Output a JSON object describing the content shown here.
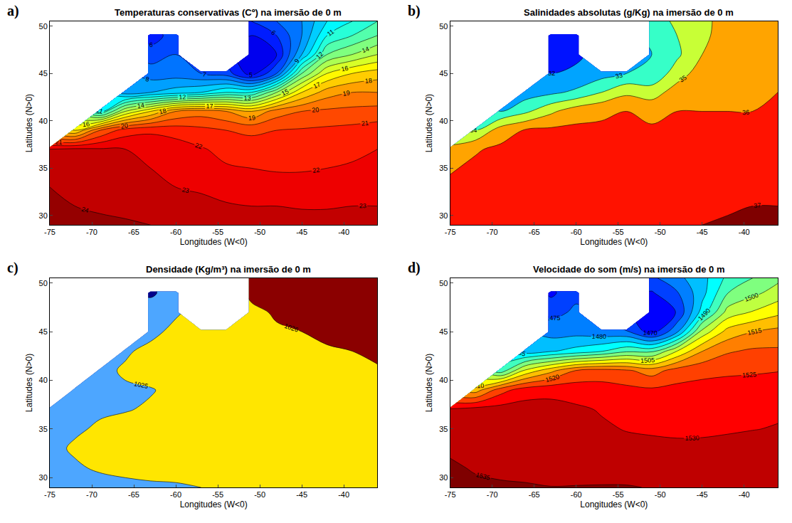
{
  "chart_data": [
    {
      "type": "contour",
      "panel": "a)",
      "title": "Temperaturas conservativas (Cº) na imersão de 0 m",
      "xlabel": "Longitudes (W<0)",
      "ylabel": "Latitudes (N>0)",
      "xlim": [
        -75,
        -36
      ],
      "xticks": [
        -75,
        -70,
        -65,
        -60,
        -55,
        -50,
        -45,
        -40
      ],
      "ylim": [
        29,
        50.5
      ],
      "yticks": [
        30,
        35,
        40,
        45,
        50
      ],
      "zlim": [
        2,
        26
      ],
      "levels": [
        2,
        3,
        4,
        5,
        6,
        7,
        8,
        9,
        10,
        11,
        12,
        13,
        14,
        15,
        16,
        17,
        18,
        19,
        20,
        21,
        22,
        23,
        24,
        25
      ],
      "colors": [
        "#00007f",
        "#0000ff",
        "#007fff",
        "#00ffff",
        "#7fff7f",
        "#ffff00",
        "#ff7f00",
        "#ff0000",
        "#7f0000"
      ],
      "x": [
        -75,
        -72,
        -69,
        -66,
        -63,
        -60,
        -57,
        -54,
        -51,
        -48,
        -45,
        -42,
        -39,
        -36
      ],
      "y": [
        29,
        31,
        33,
        35,
        37,
        39,
        41,
        43,
        45,
        47,
        49,
        50.5
      ],
      "z": [
        [
          24.5,
          24.5,
          24.3,
          24.2,
          24,
          24,
          24,
          24,
          23.8,
          23.6,
          23.5,
          23.5,
          23.5,
          23.5
        ],
        [
          24.5,
          24,
          23.8,
          23.6,
          23.4,
          23.3,
          23.2,
          23.1,
          23,
          23,
          22.9,
          22.9,
          23,
          23
        ],
        [
          24,
          23.6,
          23.3,
          23.2,
          23.1,
          23,
          22.9,
          22.6,
          22.5,
          22.4,
          22.4,
          22.5,
          22.6,
          22.7
        ],
        [
          23.8,
          23.5,
          23.3,
          23.1,
          23,
          22.8,
          22.4,
          22.1,
          22,
          21.9,
          21.9,
          22,
          22.1,
          22.2
        ],
        [
          23,
          23.2,
          23.1,
          23,
          22.8,
          22.5,
          22.1,
          21.7,
          21.5,
          21.4,
          21.5,
          21.6,
          21.8,
          22
        ],
        [
          null,
          17,
          20,
          21.5,
          21.8,
          21.6,
          21.3,
          21,
          20.8,
          21,
          21.1,
          21.2,
          21.3,
          21.5
        ],
        [
          null,
          null,
          11,
          15,
          17,
          19,
          19.5,
          19,
          18,
          19.5,
          20,
          20.2,
          20.3,
          20.4
        ],
        [
          null,
          null,
          null,
          8.5,
          9,
          9.5,
          10,
          11,
          11,
          14,
          17,
          18.5,
          19,
          19
        ],
        [
          null,
          null,
          null,
          null,
          7.5,
          7.5,
          7,
          6.5,
          4.5,
          7,
          13,
          16,
          17,
          17.5
        ],
        [
          null,
          null,
          null,
          null,
          6.5,
          7,
          null,
          null,
          4,
          5,
          9,
          13,
          14,
          15
        ],
        [
          null,
          null,
          null,
          null,
          5.5,
          6.5,
          null,
          null,
          5,
          6,
          8,
          11,
          12,
          13
        ],
        [
          null,
          null,
          null,
          null,
          null,
          null,
          null,
          null,
          6,
          7,
          8,
          10,
          11,
          12
        ]
      ]
    },
    {
      "type": "contour",
      "panel": "b)",
      "title": "Salinidades absolutas (g/Kg) na imersão de 0 m",
      "xlabel": "Longitudes (W<0)",
      "ylabel": "Latitudes (N>0)",
      "xlim": [
        -75,
        -36
      ],
      "xticks": [
        -75,
        -70,
        -65,
        -60,
        -55,
        -50,
        -45,
        -40
      ],
      "ylim": [
        29,
        50.5
      ],
      "yticks": [
        30,
        35,
        40,
        45,
        50
      ],
      "zlim": [
        30.5,
        37.5
      ],
      "levels": [
        31,
        32,
        33,
        34,
        35,
        36,
        37
      ],
      "colors": [
        "#00007f",
        "#0000ff",
        "#007fff",
        "#00ffff",
        "#7fff7f",
        "#ffff00",
        "#ff7f00",
        "#ff0000",
        "#7f0000"
      ],
      "x": [
        -75,
        -72,
        -69,
        -66,
        -63,
        -60,
        -57,
        -54,
        -51,
        -48,
        -45,
        -42,
        -39,
        -36
      ],
      "y": [
        29,
        31,
        33,
        35,
        37,
        39,
        41,
        43,
        45,
        47,
        49,
        50.5
      ],
      "z": [
        [
          36.4,
          36.5,
          36.6,
          36.7,
          36.8,
          36.9,
          37.0,
          36.9,
          36.9,
          36.9,
          37.0,
          37.1,
          37.2,
          37.3
        ],
        [
          36.3,
          36.4,
          36.5,
          36.6,
          36.7,
          36.7,
          36.7,
          36.7,
          36.7,
          36.7,
          36.8,
          36.9,
          37.0,
          37.0
        ],
        [
          36.2,
          36.3,
          36.4,
          36.5,
          36.5,
          36.6,
          36.6,
          36.6,
          36.6,
          36.6,
          36.7,
          36.7,
          36.7,
          36.8
        ],
        [
          35.9,
          36.2,
          36.3,
          36.4,
          36.4,
          36.4,
          36.4,
          36.4,
          36.4,
          36.5,
          36.5,
          36.5,
          36.5,
          36.6
        ],
        [
          35.2,
          35.9,
          36.2,
          36.3,
          36.3,
          36.3,
          36.3,
          36.3,
          36.3,
          36.3,
          36.3,
          36.3,
          36.3,
          36.4
        ],
        [
          null,
          34,
          35.5,
          36.1,
          36.2,
          36.2,
          36.1,
          36.1,
          36.1,
          36.1,
          36.1,
          36.1,
          36.2,
          36.2
        ],
        [
          null,
          null,
          33,
          33.8,
          34.8,
          35.6,
          35.9,
          36.0,
          35.8,
          36.0,
          36.0,
          36.0,
          36.0,
          36.1
        ],
        [
          null,
          null,
          null,
          32.5,
          32.8,
          33.2,
          34.0,
          34.8,
          34.5,
          35.5,
          35.9,
          36.0,
          36.0,
          36.0
        ],
        [
          null,
          null,
          null,
          null,
          32.0,
          32.2,
          32.6,
          33.0,
          33.2,
          34.5,
          35.5,
          35.8,
          35.9,
          36.0
        ],
        [
          null,
          null,
          null,
          null,
          31.5,
          31.8,
          null,
          null,
          33.0,
          33.8,
          35.0,
          35.6,
          35.8,
          35.9
        ],
        [
          null,
          null,
          null,
          null,
          31.0,
          31.8,
          null,
          null,
          33.2,
          34.0,
          34.8,
          35.4,
          35.7,
          35.8
        ],
        [
          null,
          null,
          null,
          null,
          null,
          null,
          null,
          null,
          33.5,
          34.2,
          34.8,
          35.3,
          35.6,
          35.8
        ]
      ]
    },
    {
      "type": "contour",
      "panel": "c)",
      "title": "Densidade (Kg/m³) na imersão de 0 m",
      "xlabel": "Longitudes (W<0)",
      "ylabel": "Latitudes (N>0)",
      "xlim": [
        -75,
        -36
      ],
      "xticks": [
        -75,
        -70,
        -65,
        -60,
        -55,
        -50,
        -45,
        -40
      ],
      "ylim": [
        29,
        50.5
      ],
      "yticks": [
        30,
        35,
        40,
        45,
        50
      ],
      "zlim": [
        1023,
        1027
      ],
      "levels": [
        1024,
        1025,
        1026
      ],
      "colors": [
        "#00008b",
        "#00008b",
        "#4da6ff",
        "#4da6ff",
        "#ffe600",
        "#ffe600",
        "#8b0000",
        "#8b0000"
      ],
      "x": [
        -75,
        -72,
        -69,
        -66,
        -63,
        -60,
        -57,
        -54,
        -51,
        -48,
        -45,
        -42,
        -39,
        -36
      ],
      "y": [
        29,
        31,
        33,
        35,
        37,
        39,
        41,
        43,
        45,
        47,
        49,
        50.5
      ],
      "z": [
        [
          1024.6,
          1024.6,
          1024.7,
          1024.8,
          1024.9,
          1024.9,
          1025.0,
          1025.1,
          1025.2,
          1025.3,
          1025.4,
          1025.4,
          1025.4,
          1025.5
        ],
        [
          1024.8,
          1024.9,
          1025.1,
          1025.2,
          1025.2,
          1025.3,
          1025.3,
          1025.3,
          1025.4,
          1025.4,
          1025.5,
          1025.5,
          1025.5,
          1025.5
        ],
        [
          1024.8,
          1025.1,
          1025.2,
          1025.3,
          1025.3,
          1025.4,
          1025.4,
          1025.5,
          1025.5,
          1025.5,
          1025.5,
          1025.6,
          1025.6,
          1025.6
        ],
        [
          1024.7,
          1024.9,
          1025.1,
          1025.3,
          1025.4,
          1025.4,
          1025.5,
          1025.5,
          1025.6,
          1025.6,
          1025.6,
          1025.6,
          1025.6,
          1025.7
        ],
        [
          1024.6,
          1024.8,
          1024.9,
          1024.95,
          1025.1,
          1025.3,
          1025.5,
          1025.6,
          1025.6,
          1025.7,
          1025.7,
          1025.7,
          1025.7,
          1025.7
        ],
        [
          null,
          1024.6,
          1024.8,
          1024.9,
          1024.95,
          1025.2,
          1025.5,
          1025.6,
          1025.7,
          1025.7,
          1025.7,
          1025.8,
          1025.8,
          1025.8
        ],
        [
          null,
          null,
          1024.8,
          1025.1,
          1025.3,
          1025.4,
          1025.5,
          1025.6,
          1025.7,
          1025.8,
          1025.8,
          1025.8,
          1025.9,
          1025.95
        ],
        [
          null,
          null,
          null,
          1024.9,
          1025.2,
          1025.4,
          1025.6,
          1025.7,
          1025.8,
          1025.9,
          1025.9,
          1025.95,
          1026.0,
          1026.1
        ],
        [
          null,
          null,
          null,
          null,
          1024.8,
          1025.2,
          1025.5,
          1025.7,
          1025.8,
          1025.95,
          1026.0,
          1026.1,
          1026.2,
          1026.3
        ],
        [
          null,
          null,
          null,
          null,
          1024.6,
          1024.9,
          null,
          null,
          1025.9,
          1026.05,
          1026.2,
          1026.3,
          1026.4,
          1026.4
        ],
        [
          null,
          null,
          null,
          null,
          1023.8,
          1024.6,
          null,
          null,
          1026.1,
          1026.2,
          1026.3,
          1026.4,
          1026.5,
          1026.5
        ],
        [
          null,
          null,
          null,
          null,
          null,
          null,
          null,
          null,
          1026.2,
          1026.3,
          1026.4,
          1026.5,
          1026.5,
          1026.5
        ]
      ]
    },
    {
      "type": "contour",
      "panel": "d)",
      "title": "Velocidade do som (m/s) na imersão de 0 m",
      "xlabel": "Longitudes (W<0)",
      "ylabel": "Latitudes (N>0)",
      "xlim": [
        -75,
        -36
      ],
      "xticks": [
        -75,
        -70,
        -65,
        -60,
        -55,
        -50,
        -45,
        -40
      ],
      "ylim": [
        29,
        50.5
      ],
      "yticks": [
        30,
        35,
        40,
        45,
        50
      ],
      "zlim": [
        1455,
        1540
      ],
      "levels": [
        1460,
        1465,
        1470,
        1475,
        1480,
        1485,
        1490,
        1495,
        1500,
        1505,
        1510,
        1515,
        1520,
        1525,
        1530,
        1535
      ],
      "colors": [
        "#00007f",
        "#0000ff",
        "#007fff",
        "#00ffff",
        "#7fff7f",
        "#ffff00",
        "#ff7f00",
        "#ff0000",
        "#7f0000"
      ],
      "x": [
        -75,
        -72,
        -69,
        -66,
        -63,
        -60,
        -57,
        -54,
        -51,
        -48,
        -45,
        -42,
        -39,
        -36
      ],
      "y": [
        29,
        31,
        33,
        35,
        37,
        39,
        41,
        43,
        45,
        47,
        49,
        50.5
      ],
      "z": [
        [
          1535.8,
          1535.9,
          1535.5,
          1535.4,
          1535.1,
          1535.2,
          1535.3,
          1535.3,
          1534.8,
          1534.4,
          1534.1,
          1534.2,
          1534.2,
          1534.4
        ],
        [
          1535.7,
          1534.6,
          1534.2,
          1533.8,
          1533.4,
          1533.2,
          1533.1,
          1532.9,
          1532.6,
          1532.6,
          1532.4,
          1532.4,
          1532.8,
          1532.8
        ],
        [
          1534.3,
          1533.5,
          1532.9,
          1532.7,
          1532.5,
          1532.3,
          1532.0,
          1531.3,
          1531.0,
          1530.8,
          1530.9,
          1531.1,
          1531.4,
          1531.8
        ],
        [
          1533.5,
          1533.0,
          1532.8,
          1532.4,
          1532.1,
          1531.6,
          1530.6,
          1529.8,
          1529.5,
          1529.3,
          1529.3,
          1529.6,
          1529.9,
          1530.2
        ],
        [
          1530.6,
          1532.0,
          1532.1,
          1532.0,
          1531.5,
          1530.7,
          1529.7,
          1528.6,
          1528.1,
          1527.8,
          1528.1,
          1528.3,
          1528.9,
          1529.5
        ],
        [
          null,
          1512.6,
          1523.0,
          1527.8,
          1528.7,
          1528.1,
          1527.2,
          1526.4,
          1525.9,
          1526.4,
          1526.7,
          1526.9,
          1527.3,
          1527.9
        ],
        [
          null,
          null,
          1491.9,
          1506.2,
          1513.6,
          1520.3,
          1522.1,
          1520.8,
          1517.7,
          1522.2,
          1523.6,
          1524.2,
          1524.4,
          1524.8
        ],
        [
          null,
          null,
          null,
          1482.3,
          1484.5,
          1486.8,
          1489.6,
          1494.1,
          1493.7,
          1505.0,
          1514.9,
          1519.4,
          1520.8,
          1520.8
        ],
        [
          null,
          null,
          null,
          null,
          1477.9,
          1478.1,
          1476.7,
          1475.3,
          1467.4,
          1479.0,
          1501.7,
          1511.8,
          1514.9,
          1516.5
        ],
        [
          null,
          null,
          null,
          null,
          1473.5,
          1475.8,
          null,
          null,
          1465.1,
          1470.3,
          1487.1,
          1501.8,
          1505.4,
          1508.7
        ],
        [
          null,
          null,
          null,
          null,
          1468.9,
          1473.9,
          null,
          null,
          1469.5,
          1474.5,
          1483.2,
          1494.8,
          1498.6,
          1502.1
        ],
        [
          null,
          null,
          null,
          null,
          null,
          null,
          null,
          null,
          1473.9,
          1478.6,
          1483.2,
          1491.2,
          1495.0,
          1498.8
        ]
      ]
    }
  ]
}
